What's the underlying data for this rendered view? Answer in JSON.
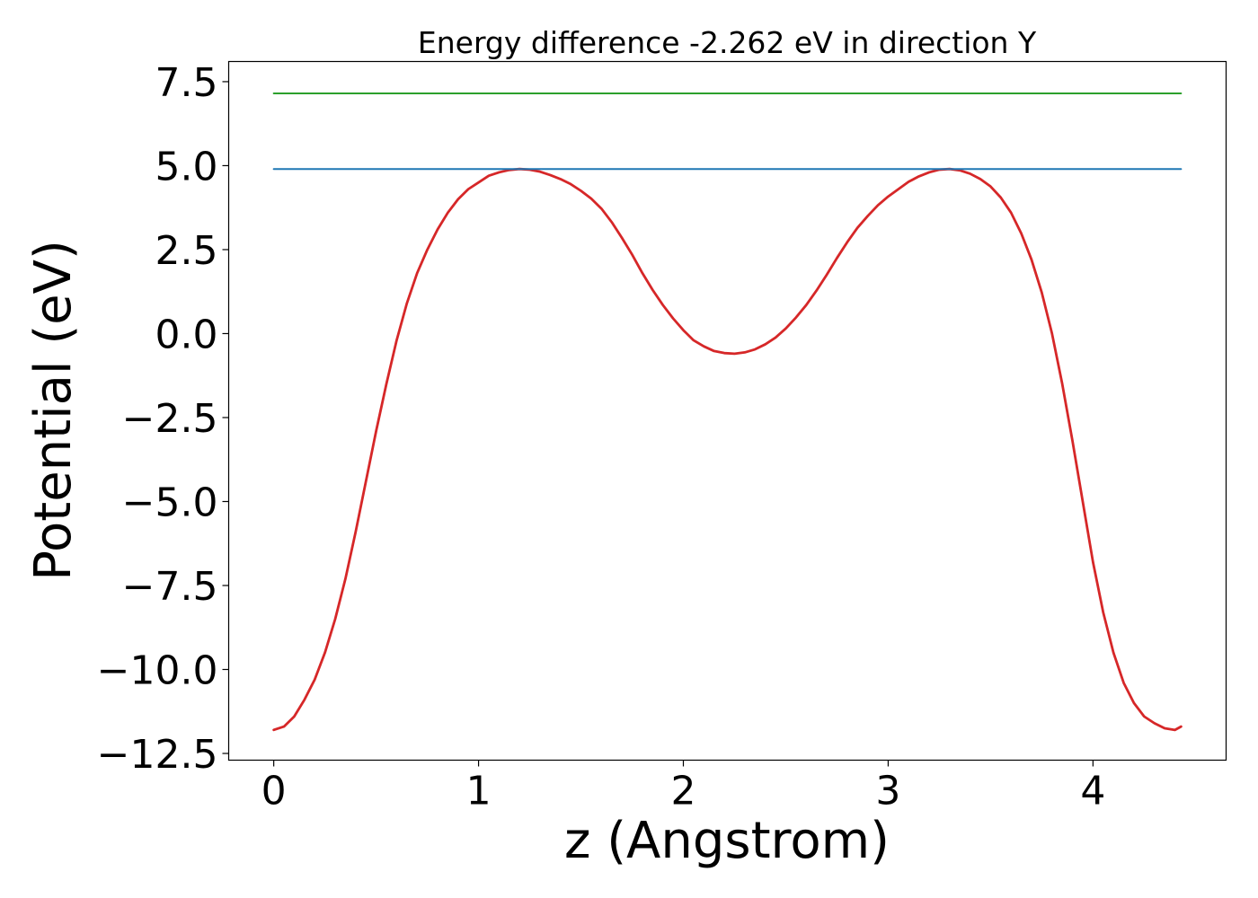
{
  "chart_data": {
    "type": "line",
    "title": "Energy difference -2.262 eV in direction Y",
    "xlabel": "z (Angstrom)",
    "ylabel": "Potential (eV)",
    "xlim": [
      -0.22,
      4.65
    ],
    "ylim": [
      -12.7,
      8.1
    ],
    "x_ticks": [
      0,
      1,
      2,
      3,
      4
    ],
    "x_tick_labels": [
      "0",
      "1",
      "2",
      "3",
      "4"
    ],
    "y_ticks": [
      -12.5,
      -10.0,
      -7.5,
      -5.0,
      -2.5,
      0.0,
      2.5,
      5.0,
      7.5
    ],
    "y_tick_labels": [
      "−12.5",
      "−10.0",
      "−7.5",
      "−5.0",
      "−2.5",
      "0.0",
      "2.5",
      "5.0",
      "7.5"
    ],
    "grid": false,
    "series": [
      {
        "color": "#d62728",
        "x": [
          0.0,
          0.05,
          0.1,
          0.15,
          0.2,
          0.25,
          0.3,
          0.35,
          0.4,
          0.45,
          0.5,
          0.55,
          0.6,
          0.65,
          0.7,
          0.75,
          0.8,
          0.85,
          0.9,
          0.95,
          1.0,
          1.05,
          1.1,
          1.15,
          1.2,
          1.25,
          1.3,
          1.35,
          1.4,
          1.45,
          1.5,
          1.55,
          1.6,
          1.65,
          1.7,
          1.75,
          1.8,
          1.85,
          1.9,
          1.95,
          2.0,
          2.05,
          2.1,
          2.15,
          2.2,
          2.25,
          2.3,
          2.35,
          2.4,
          2.45,
          2.5,
          2.55,
          2.6,
          2.65,
          2.7,
          2.75,
          2.8,
          2.85,
          2.9,
          2.95,
          3.0,
          3.05,
          3.1,
          3.15,
          3.2,
          3.25,
          3.3,
          3.35,
          3.4,
          3.45,
          3.5,
          3.55,
          3.6,
          3.65,
          3.7,
          3.75,
          3.8,
          3.85,
          3.9,
          3.95,
          4.0,
          4.05,
          4.1,
          4.15,
          4.2,
          4.25,
          4.3,
          4.35,
          4.4,
          4.43
        ],
        "y": [
          -11.8,
          -11.7,
          -11.4,
          -10.9,
          -10.3,
          -9.5,
          -8.5,
          -7.3,
          -5.9,
          -4.4,
          -2.9,
          -1.5,
          -0.2,
          0.9,
          1.8,
          2.5,
          3.1,
          3.6,
          4.0,
          4.3,
          4.5,
          4.7,
          4.8,
          4.87,
          4.9,
          4.88,
          4.82,
          4.72,
          4.6,
          4.45,
          4.25,
          4.02,
          3.72,
          3.32,
          2.85,
          2.35,
          1.8,
          1.3,
          0.85,
          0.45,
          0.1,
          -0.2,
          -0.38,
          -0.52,
          -0.58,
          -0.6,
          -0.56,
          -0.47,
          -0.32,
          -0.12,
          0.15,
          0.48,
          0.85,
          1.28,
          1.75,
          2.25,
          2.72,
          3.15,
          3.5,
          3.82,
          4.08,
          4.3,
          4.52,
          4.68,
          4.8,
          4.88,
          4.9,
          4.86,
          4.76,
          4.6,
          4.38,
          4.05,
          3.6,
          2.98,
          2.2,
          1.22,
          0.0,
          -1.5,
          -3.2,
          -5.0,
          -6.8,
          -8.3,
          -9.5,
          -10.4,
          -11.0,
          -11.4,
          -11.6,
          -11.75,
          -11.8,
          -11.7
        ]
      },
      {
        "color": "#1f77b4",
        "x": [
          0.0,
          4.43
        ],
        "y": [
          4.9,
          4.9
        ]
      },
      {
        "color": "#2ca02c",
        "x": [
          0.0,
          4.43
        ],
        "y": [
          7.15,
          7.15
        ]
      }
    ]
  }
}
